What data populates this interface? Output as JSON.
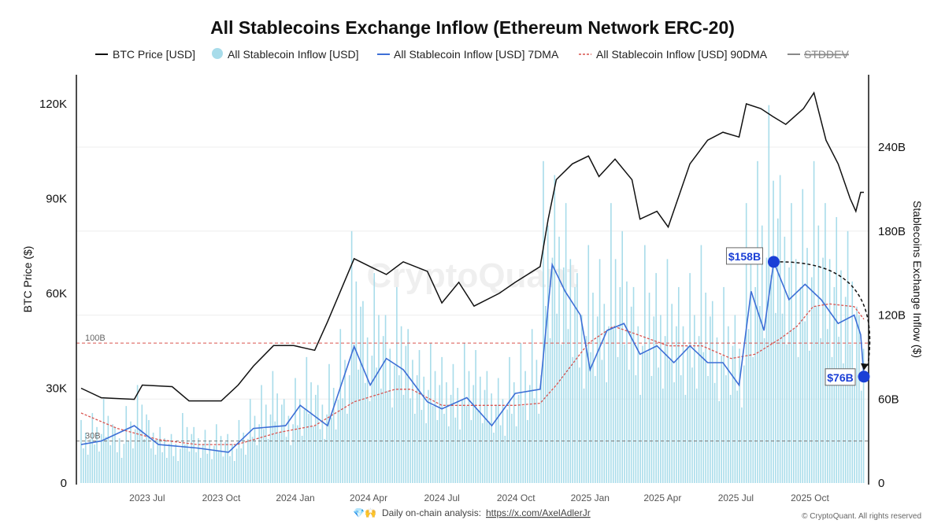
{
  "chart_data": {
    "type": "line",
    "title": "All Stablecoins Exchange Inflow (Ethereum Network ERC-20)",
    "legend": {
      "placement": "top",
      "entries": [
        {
          "label": "BTC Price [USD]",
          "color": "#111111",
          "style": "line"
        },
        {
          "label": "All Stablecoin Inflow [USD]",
          "color": "#a8dcea",
          "style": "dot"
        },
        {
          "label": "All Stablecoin Inflow [USD] 7DMA",
          "color": "#3d6fd6",
          "style": "line"
        },
        {
          "label": "All Stablecoin Inflow [USD] 90DMA",
          "color": "#d9534f",
          "style": "dashed"
        },
        {
          "label": "STDDEV",
          "color": "#888888",
          "style": "line",
          "hidden": true
        }
      ]
    },
    "x_axis": {
      "range": [
        "2023-04-10",
        "2025-12-07"
      ],
      "ticks": [
        {
          "date": "2023-07-01",
          "label": "2023 Jul"
        },
        {
          "date": "2023-10-01",
          "label": "2023 Oct"
        },
        {
          "date": "2024-01-01",
          "label": "2024 Jan"
        },
        {
          "date": "2024-04-01",
          "label": "2024 Apr"
        },
        {
          "date": "2024-07-01",
          "label": "2024 Jul"
        },
        {
          "date": "2024-10-01",
          "label": "2024 Oct"
        },
        {
          "date": "2025-01-01",
          "label": "2025 Jan"
        },
        {
          "date": "2025-04-01",
          "label": "2025 Apr"
        },
        {
          "date": "2025-07-01",
          "label": "2025 Jul"
        },
        {
          "date": "2025-10-01",
          "label": "2025 Oct"
        }
      ]
    },
    "y_left": {
      "label": "BTC Price ($)",
      "range": [
        0,
        130000
      ],
      "ticks": [
        {
          "value": 0,
          "label": "0"
        },
        {
          "value": 30000,
          "label": "30K"
        },
        {
          "value": 60000,
          "label": "60K"
        },
        {
          "value": 90000,
          "label": "90K"
        },
        {
          "value": 120000,
          "label": "120K"
        }
      ]
    },
    "y_right": {
      "label": "Stablecoins Exchange Inflow ($)",
      "unit": "B",
      "range": [
        0,
        268
      ],
      "ticks": [
        {
          "value": 0,
          "label": "0"
        },
        {
          "value": 60,
          "label": "60B"
        },
        {
          "value": 120,
          "label": "120B"
        },
        {
          "value": 180,
          "label": "180B"
        },
        {
          "value": 240,
          "label": "240B"
        }
      ]
    },
    "grid": true,
    "reference_lines": [
      {
        "value": 100,
        "label": "100B",
        "color": "#d9534f"
      },
      {
        "value": 30,
        "label": "30B",
        "color": "#777777"
      }
    ],
    "series": {
      "btc_price": [
        [
          "2023-04-10",
          30000
        ],
        [
          "2023-05-05",
          27000
        ],
        [
          "2023-06-15",
          26500
        ],
        [
          "2023-06-25",
          31000
        ],
        [
          "2023-08-01",
          30500
        ],
        [
          "2023-08-22",
          26000
        ],
        [
          "2023-10-01",
          26000
        ],
        [
          "2023-10-22",
          31000
        ],
        [
          "2023-11-10",
          37000
        ],
        [
          "2023-12-05",
          43500
        ],
        [
          "2023-12-30",
          43500
        ],
        [
          "2024-01-25",
          42000
        ],
        [
          "2024-02-10",
          51000
        ],
        [
          "2024-03-14",
          71000
        ],
        [
          "2024-04-03",
          68500
        ],
        [
          "2024-04-23",
          66000
        ],
        [
          "2024-05-14",
          70000
        ],
        [
          "2024-06-13",
          67000
        ],
        [
          "2024-07-01",
          57000
        ],
        [
          "2024-07-22",
          63500
        ],
        [
          "2024-08-10",
          56000
        ],
        [
          "2024-09-10",
          60000
        ],
        [
          "2024-09-30",
          63500
        ],
        [
          "2024-10-31",
          68500
        ],
        [
          "2024-11-10",
          83500
        ],
        [
          "2024-11-20",
          96000
        ],
        [
          "2024-12-10",
          101000
        ],
        [
          "2024-12-30",
          103500
        ],
        [
          "2025-01-12",
          97000
        ],
        [
          "2025-02-01",
          102500
        ],
        [
          "2025-02-22",
          96000
        ],
        [
          "2025-03-04",
          83500
        ],
        [
          "2025-03-25",
          86000
        ],
        [
          "2025-04-08",
          81000
        ],
        [
          "2025-05-05",
          101000
        ],
        [
          "2025-05-27",
          108500
        ],
        [
          "2025-06-15",
          111000
        ],
        [
          "2025-07-05",
          109500
        ],
        [
          "2025-07-14",
          120000
        ],
        [
          "2025-08-01",
          118500
        ],
        [
          "2025-08-16",
          116000
        ],
        [
          "2025-09-01",
          113500
        ],
        [
          "2025-09-23",
          118500
        ],
        [
          "2025-10-06",
          123500
        ],
        [
          "2025-10-21",
          108500
        ],
        [
          "2025-11-05",
          101000
        ],
        [
          "2025-11-20",
          90000
        ],
        [
          "2025-11-27",
          86000
        ],
        [
          "2025-12-03",
          92000
        ],
        [
          "2025-12-07",
          92000
        ]
      ],
      "inflow_daily": {
        "start": "2023-04-10",
        "interval_days": 14,
        "values": [
          45,
          50,
          60,
          40,
          55,
          70,
          45,
          40,
          35,
          50,
          40,
          38,
          42,
          35,
          45,
          60,
          70,
          80,
          60,
          75,
          90,
          70,
          85,
          110,
          180,
          130,
          150,
          120,
          140,
          110,
          95,
          100,
          90,
          85,
          100,
          95,
          80,
          75,
          90,
          100,
          110,
          230,
          220,
          200,
          150,
          170,
          160,
          200,
          180,
          140,
          170,
          150,
          160,
          140,
          150,
          170,
          130,
          140,
          120,
          200,
          230,
          270,
          220,
          200,
          210,
          230,
          200,
          190,
          180,
          120
        ]
      },
      "inflow_7dma": [
        [
          "2023-04-10",
          27.5
        ],
        [
          "2023-05-05",
          30
        ],
        [
          "2023-06-15",
          41
        ],
        [
          "2023-07-15",
          27.5
        ],
        [
          "2023-09-01",
          25
        ],
        [
          "2023-10-10",
          22
        ],
        [
          "2023-11-10",
          39
        ],
        [
          "2023-12-20",
          41
        ],
        [
          "2024-01-07",
          55.5
        ],
        [
          "2024-02-10",
          41
        ],
        [
          "2024-03-14",
          97.6
        ],
        [
          "2024-04-03",
          70
        ],
        [
          "2024-04-23",
          89
        ],
        [
          "2024-05-14",
          81
        ],
        [
          "2024-06-13",
          58
        ],
        [
          "2024-07-01",
          53
        ],
        [
          "2024-08-01",
          61
        ],
        [
          "2024-09-01",
          41
        ],
        [
          "2024-09-30",
          64
        ],
        [
          "2024-10-31",
          67
        ],
        [
          "2024-11-15",
          156
        ],
        [
          "2024-12-01",
          137
        ],
        [
          "2024-12-20",
          120
        ],
        [
          "2025-01-01",
          81
        ],
        [
          "2025-01-22",
          109
        ],
        [
          "2025-02-12",
          114
        ],
        [
          "2025-03-04",
          92
        ],
        [
          "2025-03-25",
          98
        ],
        [
          "2025-04-15",
          86
        ],
        [
          "2025-05-05",
          98
        ],
        [
          "2025-05-27",
          86
        ],
        [
          "2025-06-15",
          86
        ],
        [
          "2025-07-05",
          70
        ],
        [
          "2025-07-20",
          137
        ],
        [
          "2025-08-05",
          109
        ],
        [
          "2025-08-17",
          158
        ],
        [
          "2025-09-05",
          131
        ],
        [
          "2025-09-25",
          142
        ],
        [
          "2025-10-15",
          131
        ],
        [
          "2025-11-05",
          114
        ],
        [
          "2025-11-25",
          120
        ],
        [
          "2025-12-03",
          106
        ],
        [
          "2025-12-07",
          76
        ]
      ],
      "inflow_90dma": [
        [
          "2023-04-10",
          50
        ],
        [
          "2023-05-25",
          39
        ],
        [
          "2023-07-15",
          31
        ],
        [
          "2023-09-01",
          27.5
        ],
        [
          "2023-10-20",
          27.5
        ],
        [
          "2023-12-10",
          36
        ],
        [
          "2024-01-25",
          41
        ],
        [
          "2024-03-14",
          58
        ],
        [
          "2024-05-04",
          67
        ],
        [
          "2024-05-24",
          67
        ],
        [
          "2024-07-01",
          55.5
        ],
        [
          "2024-08-10",
          55.5
        ],
        [
          "2024-09-30",
          55.5
        ],
        [
          "2024-10-31",
          57
        ],
        [
          "2024-11-20",
          70
        ],
        [
          "2024-12-30",
          100
        ],
        [
          "2025-01-30",
          112
        ],
        [
          "2025-03-01",
          106
        ],
        [
          "2025-04-08",
          98
        ],
        [
          "2025-05-20",
          98
        ],
        [
          "2025-06-25",
          89
        ],
        [
          "2025-07-25",
          92
        ],
        [
          "2025-08-25",
          103
        ],
        [
          "2025-09-15",
          112
        ],
        [
          "2025-10-05",
          126
        ],
        [
          "2025-10-25",
          128
        ],
        [
          "2025-11-25",
          126
        ],
        [
          "2025-12-07",
          117
        ]
      ]
    },
    "annotations": [
      {
        "label": "$158B",
        "date": "2025-08-17",
        "value": 158
      },
      {
        "label": "$76B",
        "date": "2025-12-07",
        "value": 76
      }
    ],
    "accent_color": "#1a3fd6"
  },
  "watermark": "CryptoQuant",
  "footer": {
    "icons": "💎🙌",
    "text": "Daily on-chain analysis:",
    "link": "https://x.com/AxelAdlerJr",
    "copyright": "© CryptoQuant. All rights reserved"
  }
}
